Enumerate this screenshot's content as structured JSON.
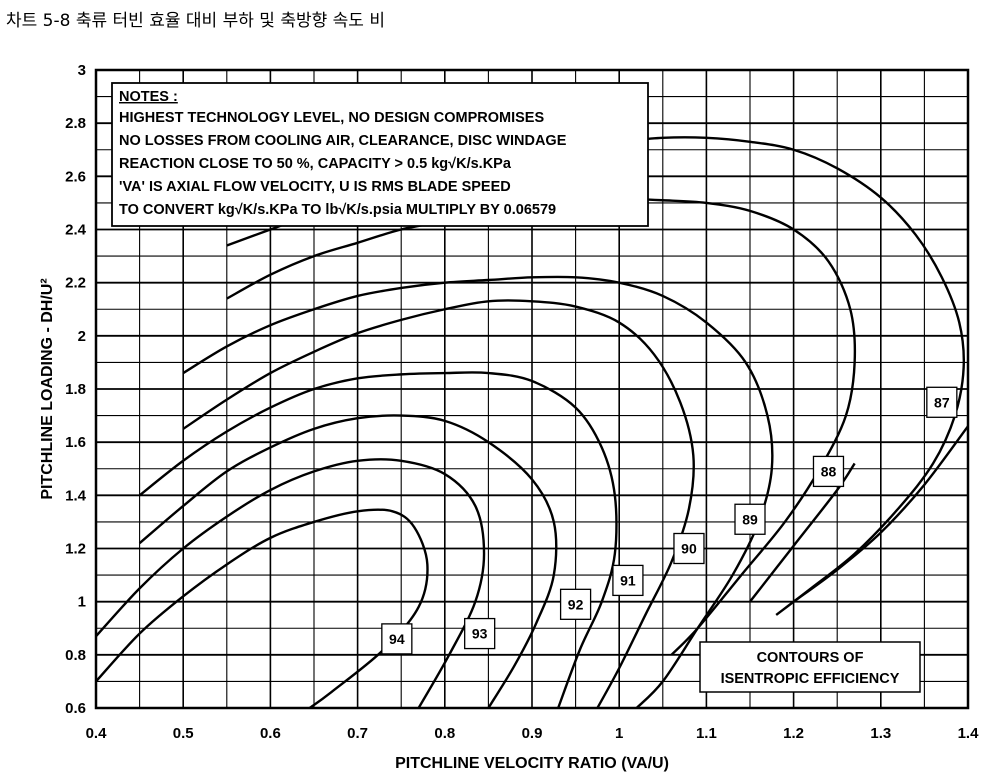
{
  "caption": "차트 5-8 축류 터빈 효율 대비 부하 및 축방향 속도 비",
  "chart_data": {
    "type": "line",
    "xlabel": "PITCHLINE VELOCITY RATIO (VA/U)",
    "ylabel": "PITCHLINE LOADING - DH/U²",
    "xlim": [
      0.4,
      1.4
    ],
    "ylim": [
      0.6,
      3.0
    ],
    "x_ticks": [
      "0.4",
      "0.5",
      "0.6",
      "0.7",
      "0.8",
      "0.9",
      "1",
      "1.1",
      "1.2",
      "1.3",
      "1.4"
    ],
    "y_ticks": [
      "0.6",
      "0.8",
      "1",
      "1.2",
      "1.4",
      "1.6",
      "1.8",
      "2",
      "2.2",
      "2.4",
      "2.6",
      "2.8",
      "3"
    ],
    "grid": true,
    "notes": {
      "title": "NOTES :",
      "lines": [
        "HIGHEST TECHNOLOGY LEVEL, NO DESIGN COMPROMISES",
        "NO LOSSES FROM COOLING AIR, CLEARANCE, DISC WINDAGE",
        "REACTION CLOSE TO 50 %, CAPACITY > 0.5 kg√K/s.KPa",
        "'VA' IS AXIAL FLOW VELOCITY, U IS RMS BLADE SPEED",
        "TO CONVERT kg√K/s.KPa TO lb√K/s.psia MULTIPLY BY 0.06579"
      ]
    },
    "legend_box": [
      "CONTOURS OF",
      "ISENTROPIC EFFICIENCY"
    ],
    "series": [
      {
        "name": "94",
        "label_at": [
          0.745,
          0.86
        ],
        "points": [
          [
            0.4,
            0.7
          ],
          [
            0.45,
            0.88
          ],
          [
            0.5,
            1.02
          ],
          [
            0.55,
            1.14
          ],
          [
            0.6,
            1.24
          ],
          [
            0.65,
            1.3
          ],
          [
            0.7,
            1.34
          ],
          [
            0.74,
            1.34
          ],
          [
            0.765,
            1.28
          ],
          [
            0.78,
            1.14
          ],
          [
            0.77,
            0.98
          ],
          [
            0.73,
            0.82
          ],
          [
            0.67,
            0.66
          ],
          [
            0.645,
            0.6
          ]
        ]
      },
      {
        "name": "93",
        "label_at": [
          0.84,
          0.88
        ],
        "points": [
          [
            0.4,
            0.87
          ],
          [
            0.45,
            1.05
          ],
          [
            0.5,
            1.2
          ],
          [
            0.55,
            1.32
          ],
          [
            0.6,
            1.42
          ],
          [
            0.65,
            1.49
          ],
          [
            0.7,
            1.53
          ],
          [
            0.75,
            1.53
          ],
          [
            0.8,
            1.48
          ],
          [
            0.835,
            1.36
          ],
          [
            0.845,
            1.18
          ],
          [
            0.835,
            1.0
          ],
          [
            0.805,
            0.8
          ],
          [
            0.77,
            0.6
          ]
        ]
      },
      {
        "name": "92",
        "label_at": [
          0.95,
          0.99
        ],
        "points": [
          [
            0.45,
            1.22
          ],
          [
            0.5,
            1.36
          ],
          [
            0.55,
            1.49
          ],
          [
            0.6,
            1.58
          ],
          [
            0.65,
            1.65
          ],
          [
            0.7,
            1.69
          ],
          [
            0.75,
            1.7
          ],
          [
            0.8,
            1.68
          ],
          [
            0.85,
            1.6
          ],
          [
            0.9,
            1.46
          ],
          [
            0.925,
            1.3
          ],
          [
            0.925,
            1.1
          ],
          [
            0.905,
            0.92
          ],
          [
            0.88,
            0.76
          ],
          [
            0.85,
            0.6
          ]
        ]
      },
      {
        "name": "91",
        "label_at": [
          1.01,
          1.08
        ],
        "points": [
          [
            0.45,
            1.4
          ],
          [
            0.5,
            1.53
          ],
          [
            0.55,
            1.64
          ],
          [
            0.6,
            1.73
          ],
          [
            0.65,
            1.8
          ],
          [
            0.7,
            1.84
          ],
          [
            0.75,
            1.855
          ],
          [
            0.8,
            1.86
          ],
          [
            0.85,
            1.86
          ],
          [
            0.9,
            1.83
          ],
          [
            0.95,
            1.73
          ],
          [
            0.98,
            1.58
          ],
          [
            0.995,
            1.4
          ],
          [
            0.995,
            1.18
          ],
          [
            0.98,
            1.0
          ],
          [
            0.955,
            0.82
          ],
          [
            0.93,
            0.6
          ]
        ]
      },
      {
        "name": "90",
        "label_at": [
          1.08,
          1.2
        ],
        "points": [
          [
            0.5,
            1.65
          ],
          [
            0.55,
            1.76
          ],
          [
            0.6,
            1.86
          ],
          [
            0.65,
            1.94
          ],
          [
            0.7,
            2.01
          ],
          [
            0.75,
            2.06
          ],
          [
            0.8,
            2.1
          ],
          [
            0.85,
            2.13
          ],
          [
            0.9,
            2.13
          ],
          [
            0.95,
            2.11
          ],
          [
            1.0,
            2.05
          ],
          [
            1.04,
            1.93
          ],
          [
            1.07,
            1.75
          ],
          [
            1.085,
            1.55
          ],
          [
            1.08,
            1.35
          ],
          [
            1.06,
            1.15
          ],
          [
            1.03,
            0.95
          ],
          [
            1.0,
            0.75
          ],
          [
            0.975,
            0.6
          ]
        ]
      },
      {
        "name": "89",
        "label_at": [
          1.15,
          1.31
        ],
        "points": [
          [
            0.5,
            1.86
          ],
          [
            0.55,
            1.96
          ],
          [
            0.6,
            2.04
          ],
          [
            0.65,
            2.1
          ],
          [
            0.7,
            2.15
          ],
          [
            0.75,
            2.18
          ],
          [
            0.8,
            2.2
          ],
          [
            0.85,
            2.21
          ],
          [
            0.9,
            2.22
          ],
          [
            0.95,
            2.22
          ],
          [
            1.0,
            2.2
          ],
          [
            1.05,
            2.15
          ],
          [
            1.1,
            2.05
          ],
          [
            1.145,
            1.9
          ],
          [
            1.17,
            1.7
          ],
          [
            1.175,
            1.5
          ],
          [
            1.16,
            1.3
          ],
          [
            1.13,
            1.1
          ],
          [
            1.09,
            0.9
          ],
          [
            1.05,
            0.7
          ],
          [
            1.02,
            0.6
          ]
        ]
      },
      {
        "name": "88",
        "label_at": [
          1.24,
          1.49
        ],
        "points": [
          [
            0.55,
            2.14
          ],
          [
            0.6,
            2.23
          ],
          [
            0.65,
            2.3
          ],
          [
            0.7,
            2.35
          ],
          [
            0.75,
            2.4
          ],
          [
            0.8,
            2.43
          ],
          [
            0.85,
            2.46
          ],
          [
            0.9,
            2.49
          ],
          [
            0.95,
            2.51
          ],
          [
            1.0,
            2.515
          ],
          [
            1.05,
            2.51
          ],
          [
            1.1,
            2.5
          ],
          [
            1.15,
            2.47
          ],
          [
            1.2,
            2.4
          ],
          [
            1.24,
            2.28
          ],
          [
            1.265,
            2.1
          ],
          [
            1.27,
            1.9
          ],
          [
            1.26,
            1.7
          ],
          [
            1.23,
            1.5
          ],
          [
            1.19,
            1.3
          ],
          [
            1.14,
            1.1
          ],
          [
            1.09,
            0.9
          ],
          [
            1.06,
            0.8
          ]
        ]
      },
      {
        "name": "87",
        "label_at": [
          1.37,
          1.75
        ],
        "points": [
          [
            0.55,
            2.34
          ],
          [
            0.6,
            2.4
          ],
          [
            0.65,
            2.46
          ],
          [
            0.7,
            2.51
          ],
          [
            0.75,
            2.56
          ],
          [
            0.8,
            2.6
          ],
          [
            0.85,
            2.64
          ],
          [
            0.9,
            2.68
          ],
          [
            0.95,
            2.71
          ],
          [
            1.0,
            2.73
          ],
          [
            1.05,
            2.745
          ],
          [
            1.1,
            2.745
          ],
          [
            1.15,
            2.73
          ],
          [
            1.2,
            2.7
          ],
          [
            1.25,
            2.63
          ],
          [
            1.3,
            2.52
          ],
          [
            1.34,
            2.38
          ],
          [
            1.37,
            2.22
          ],
          [
            1.39,
            2.05
          ],
          [
            1.395,
            1.88
          ],
          [
            1.385,
            1.7
          ],
          [
            1.36,
            1.52
          ],
          [
            1.32,
            1.35
          ],
          [
            1.27,
            1.18
          ],
          [
            1.22,
            1.05
          ],
          [
            1.18,
            0.95
          ]
        ]
      }
    ],
    "extra_lines": [
      {
        "name": "87-lower",
        "points": [
          [
            1.2,
            1.0
          ],
          [
            1.25,
            1.12
          ],
          [
            1.3,
            1.26
          ],
          [
            1.35,
            1.44
          ],
          [
            1.4,
            1.66
          ]
        ]
      },
      {
        "name": "88-lower",
        "points": [
          [
            1.15,
            1.0
          ],
          [
            1.2,
            1.21
          ],
          [
            1.25,
            1.42
          ],
          [
            1.27,
            1.52
          ]
        ]
      }
    ]
  }
}
